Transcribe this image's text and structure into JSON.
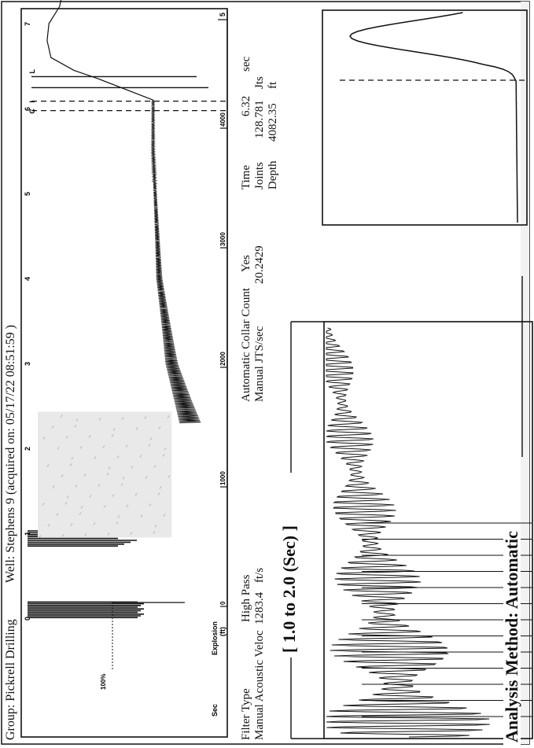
{
  "header": {
    "group": "Group: Pickrell Drilling",
    "well": "Well: Stephens 9 (acquired on: 05/17/22 08:51:59 )"
  },
  "main_plot": {
    "y_label": "Sec",
    "left_label": "Explosion",
    "amplitude_label": "100%",
    "units_label": "(ft)",
    "sec_ticks": [
      "0",
      "1",
      "2",
      "3",
      "4",
      "5",
      "6",
      "7"
    ],
    "depth_ticks": [
      "0",
      "1000",
      "2000",
      "3000",
      "4000"
    ],
    "depth_end_label": "5",
    "markers": [
      "C",
      "I",
      "L"
    ]
  },
  "settings": {
    "filter_type_label": "Filter Type",
    "filter_type_value": "High Pass",
    "acoustic_velocity_label": "Manual Acoustic Veloc",
    "acoustic_velocity_value": "1283.4",
    "acoustic_velocity_unit": "ft/s",
    "collar_count_label": "Automatic Collar Count",
    "collar_count_value": "Yes",
    "jts_label": "Manual JTS/sec",
    "jts_value": "20.2429"
  },
  "result": {
    "time_label": "Time",
    "time_value": "6.32",
    "time_unit": "sec",
    "joints_label": "Joints",
    "joints_value": "128.781",
    "joints_unit": "Jts",
    "depth_label": "Depth",
    "depth_value": "4082.35",
    "depth_unit": "ft"
  },
  "range_label": "[ 1.0  to  2.0 (Sec) ]",
  "analysis_method": "Analysis Method:  Automatic",
  "chart_data": {
    "type": "line",
    "x_axis": "Sec",
    "xlim": [
      0,
      7.7
    ],
    "secondary_x_axis": "Depth (ft)",
    "explosion_sec": 0.1,
    "collar_sec": 6.05,
    "liquid_level_sec": 6.32,
    "series": [
      {
        "x": [
          2.3,
          2.6,
          3.0,
          3.5,
          4.0,
          4.5,
          5.0,
          5.5,
          6.0,
          6.1
        ],
        "y": [
          0.18,
          0.22,
          0.27,
          0.3,
          0.33,
          0.34,
          0.35,
          0.36,
          0.36,
          0.36
        ]
      },
      {
        "x": [
          6.35,
          6.45,
          6.6,
          6.8,
          7.0,
          7.2,
          7.4,
          7.6
        ],
        "y": [
          0.62,
          0.75,
          0.85,
          0.88,
          0.86,
          0.82,
          0.79,
          0.78
        ]
      }
    ]
  }
}
